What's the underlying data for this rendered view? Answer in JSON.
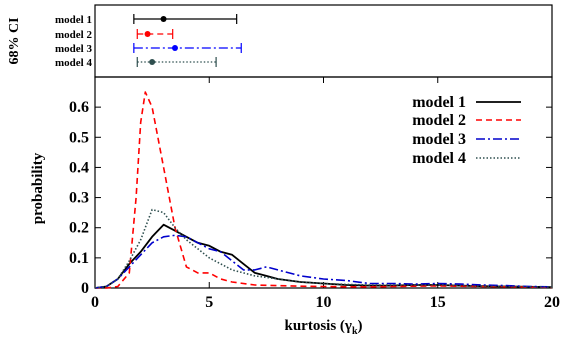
{
  "chart_data": {
    "type": "line",
    "title": "",
    "ci_panel": {
      "ylabel": "68% CI",
      "rows": [
        {
          "name": "model 1",
          "lo": 1.7,
          "median": 3.0,
          "hi": 6.2,
          "color": "#000000",
          "dash": "solid"
        },
        {
          "name": "model 2",
          "lo": 1.85,
          "median": 2.3,
          "hi": 3.4,
          "color": "#ff0000",
          "dash": "dashed"
        },
        {
          "name": "model 3",
          "lo": 1.7,
          "median": 3.5,
          "hi": 6.4,
          "color": "#0000ff",
          "dash": "dashdot"
        },
        {
          "name": "model 4",
          "lo": 1.85,
          "median": 2.5,
          "hi": 5.3,
          "color": "#2f4f4f",
          "dash": "dotted"
        }
      ]
    },
    "xlabel": "kurtosis (γ",
    "xlabel_sub": "k",
    "xlabel_close": ")",
    "ylabel": "probability",
    "xlim": [
      0,
      20
    ],
    "ylim": [
      0,
      0.7
    ],
    "xticks": [
      0,
      5,
      10,
      15,
      20
    ],
    "yticks": [
      0,
      0.1,
      0.2,
      0.3,
      0.4,
      0.5,
      0.6
    ],
    "ytick_labels": [
      "0",
      "0.1",
      "0.2",
      "0.3",
      "0.4",
      "0.5",
      "0.6"
    ],
    "legend_position": "top-right",
    "series": [
      {
        "name": "model 1",
        "color": "#000000",
        "dash": "solid",
        "x": [
          0,
          0.5,
          1,
          1.5,
          2,
          2.5,
          3,
          3.5,
          4,
          4.5,
          5,
          5.5,
          6,
          6.5,
          7,
          7.5,
          8,
          9,
          10,
          11,
          12,
          13,
          14,
          15,
          16,
          17,
          18,
          19,
          20
        ],
        "y": [
          0,
          0.005,
          0.03,
          0.08,
          0.12,
          0.17,
          0.21,
          0.19,
          0.17,
          0.15,
          0.14,
          0.12,
          0.11,
          0.08,
          0.05,
          0.04,
          0.03,
          0.02,
          0.015,
          0.01,
          0.008,
          0.008,
          0.01,
          0.01,
          0.008,
          0.006,
          0.005,
          0.004,
          0.003
        ]
      },
      {
        "name": "model 2",
        "color": "#ff0000",
        "dash": "dashed",
        "x": [
          0,
          0.5,
          1,
          1.5,
          1.8,
          2,
          2.2,
          2.5,
          3,
          3.5,
          4,
          4.5,
          5,
          5.5,
          6,
          7,
          8,
          9,
          10,
          11,
          12,
          13,
          14,
          15,
          16,
          17,
          18,
          19,
          20
        ],
        "y": [
          0,
          0.0,
          0.005,
          0.05,
          0.3,
          0.55,
          0.65,
          0.6,
          0.4,
          0.2,
          0.07,
          0.05,
          0.05,
          0.03,
          0.02,
          0.01,
          0.008,
          0.006,
          0.005,
          0.004,
          0.004,
          0.005,
          0.006,
          0.007,
          0.006,
          0.005,
          0.004,
          0.003,
          0.002
        ]
      },
      {
        "name": "model 3",
        "color": "#0000cc",
        "dash": "dashdot",
        "x": [
          0,
          0.5,
          1,
          1.5,
          2,
          2.5,
          3,
          3.5,
          4,
          4.5,
          5,
          5.5,
          6,
          6.5,
          7,
          7.5,
          8,
          9,
          10,
          11,
          12,
          13,
          14,
          15,
          16,
          17,
          18,
          19,
          20
        ],
        "y": [
          0,
          0.005,
          0.03,
          0.07,
          0.11,
          0.15,
          0.17,
          0.175,
          0.17,
          0.15,
          0.13,
          0.12,
          0.09,
          0.06,
          0.06,
          0.07,
          0.06,
          0.04,
          0.03,
          0.025,
          0.015,
          0.015,
          0.013,
          0.015,
          0.013,
          0.01,
          0.008,
          0.005,
          0.004
        ]
      },
      {
        "name": "model 4",
        "color": "#2f4f4f",
        "dash": "dotted",
        "x": [
          0,
          0.5,
          1,
          1.5,
          2,
          2.5,
          3,
          3.5,
          4,
          4.5,
          5,
          5.5,
          6,
          6.5,
          7,
          7.5,
          8,
          9,
          10,
          11,
          12,
          13,
          14,
          15,
          16,
          17,
          18,
          19,
          20
        ],
        "y": [
          0,
          0.005,
          0.03,
          0.09,
          0.16,
          0.26,
          0.25,
          0.2,
          0.16,
          0.13,
          0.1,
          0.08,
          0.06,
          0.05,
          0.04,
          0.035,
          0.03,
          0.02,
          0.015,
          0.012,
          0.01,
          0.01,
          0.01,
          0.01,
          0.008,
          0.006,
          0.005,
          0.004,
          0.003
        ]
      }
    ]
  }
}
